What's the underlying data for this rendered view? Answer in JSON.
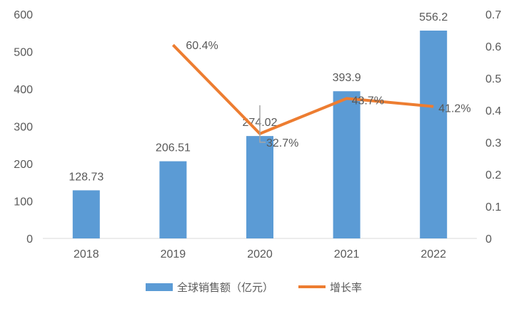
{
  "chart_data": {
    "type": "bar+line",
    "categories": [
      "2018",
      "2019",
      "2020",
      "2021",
      "2022"
    ],
    "series": [
      {
        "name": "全球销售额（亿元）",
        "type": "bar",
        "axis": "left",
        "values": [
          128.73,
          206.51,
          274.02,
          393.9,
          556.2
        ],
        "labels": [
          "128.73",
          "206.51",
          "274.02",
          "393.9",
          "556.2"
        ],
        "color": "#5B9BD5"
      },
      {
        "name": "增长率",
        "type": "line",
        "axis": "right",
        "values": [
          null,
          0.604,
          0.327,
          0.437,
          0.412
        ],
        "labels": [
          "",
          "60.4%",
          "32.7%",
          "43.7%",
          "41.2%"
        ],
        "color": "#ED7D31"
      }
    ],
    "left_axis": {
      "range": [
        0,
        600
      ],
      "ticks": [
        "0",
        "100",
        "200",
        "300",
        "400",
        "500",
        "600"
      ]
    },
    "right_axis": {
      "range": [
        0,
        0.7
      ],
      "ticks": [
        "0",
        "0.1",
        "0.2",
        "0.3",
        "0.4",
        "0.5",
        "0.6",
        "0.7"
      ]
    },
    "grid": false,
    "legend": "bottom"
  }
}
